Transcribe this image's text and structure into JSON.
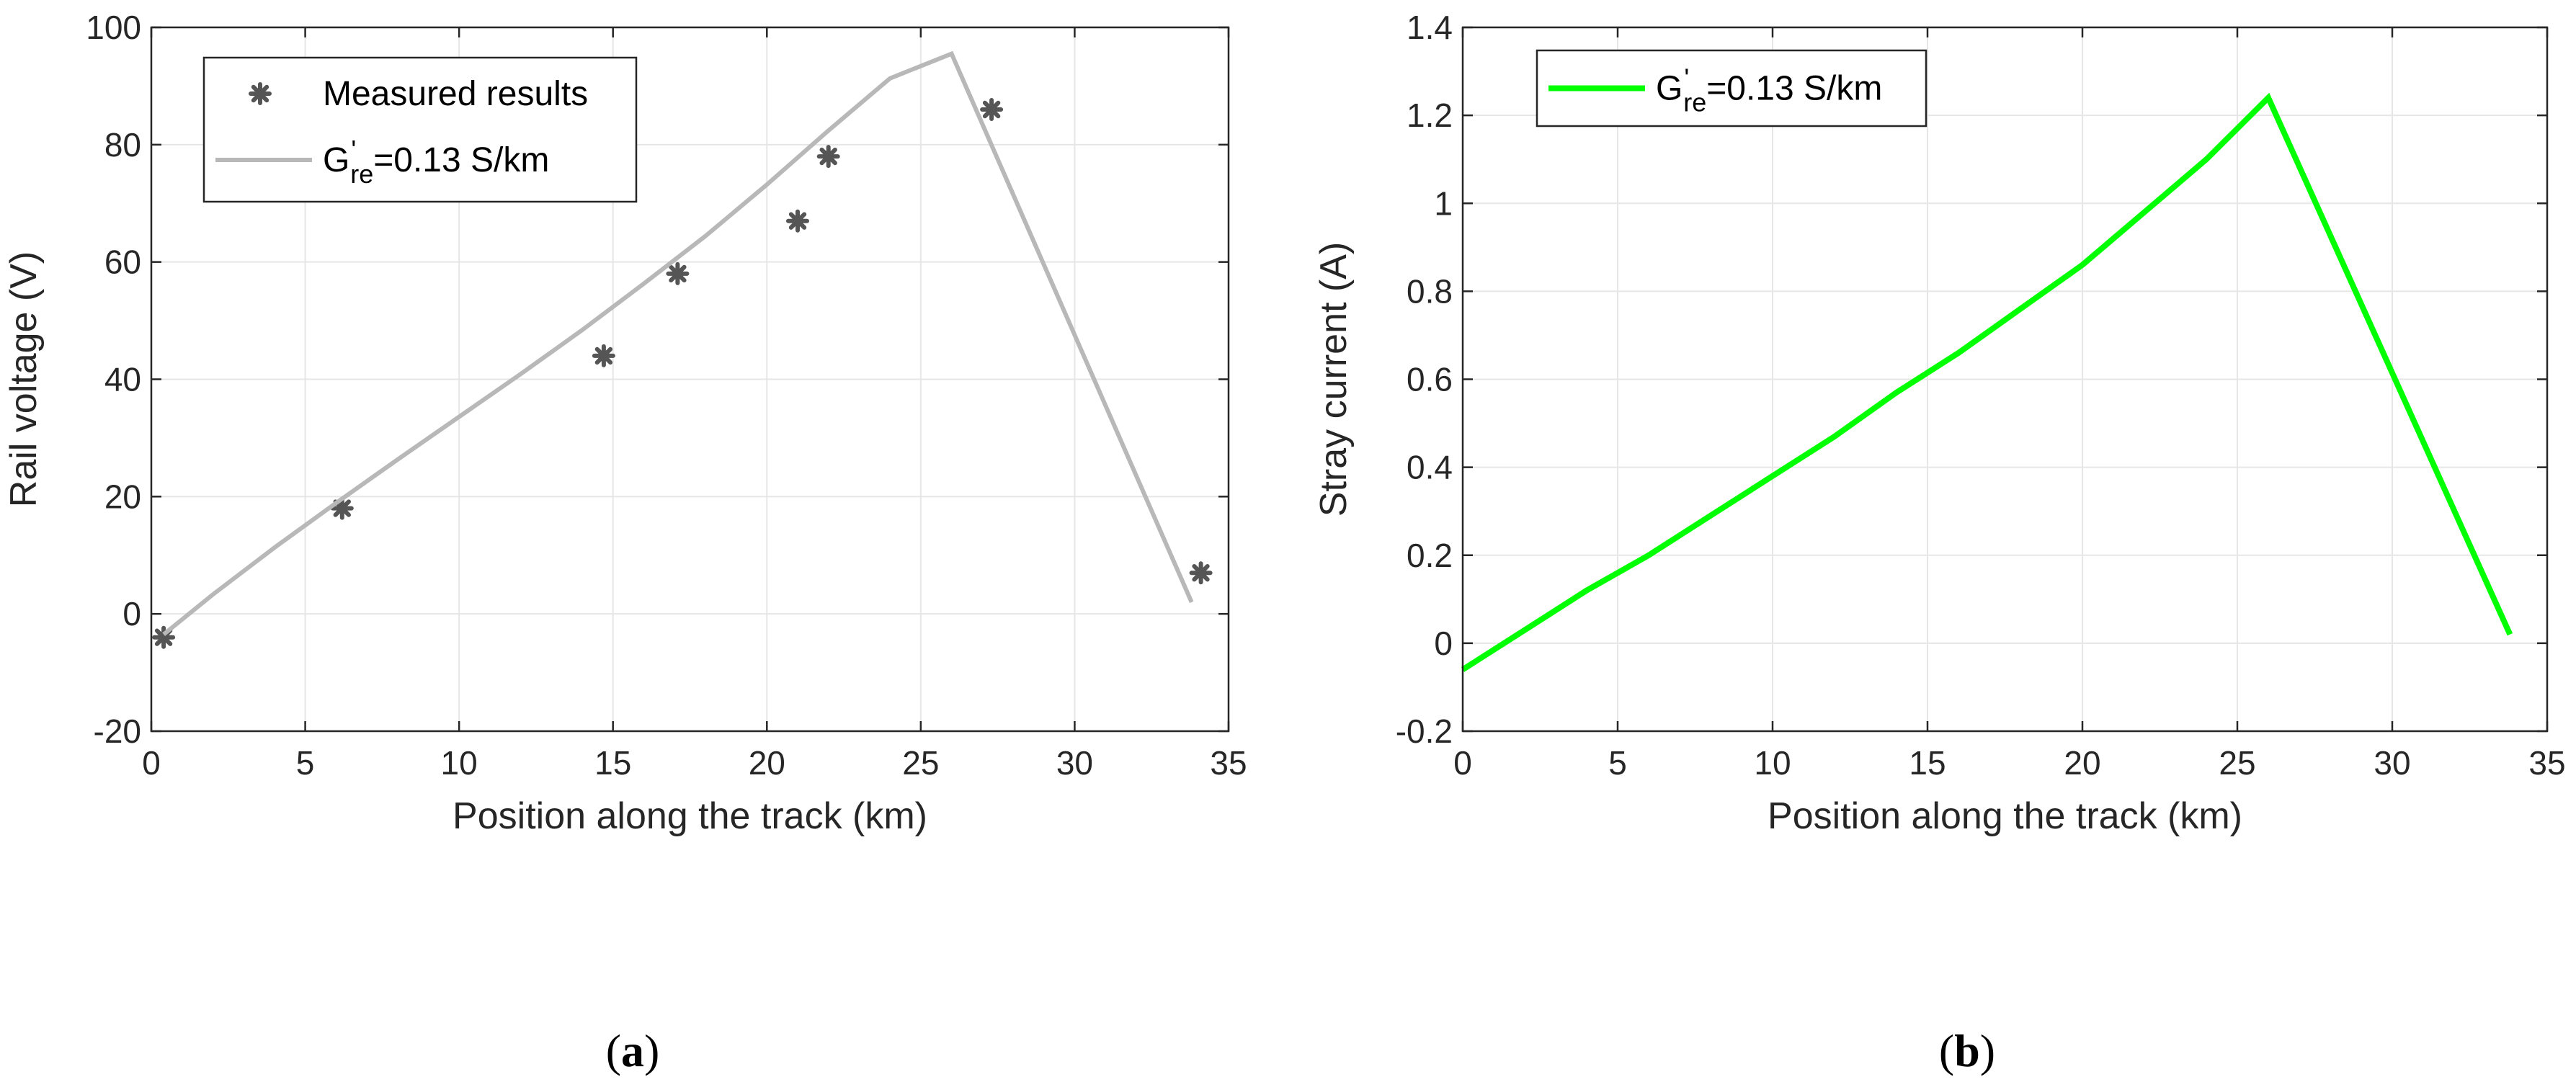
{
  "chart_data": [
    {
      "type": "line",
      "panel": "a",
      "caption": {
        "open": "(",
        "letter": "a",
        "close": ")"
      },
      "xlabel": "Position along the track (km)",
      "ylabel": "Rail voltage (V)",
      "xlim": [
        0,
        35
      ],
      "ylim": [
        -20,
        100
      ],
      "xticks": [
        0,
        5,
        10,
        15,
        20,
        25,
        30,
        35
      ],
      "yticks": [
        -20,
        0,
        20,
        40,
        60,
        80,
        100
      ],
      "grid": true,
      "legend_position": "top-left",
      "series": [
        {
          "name": "Measured results",
          "kind": "scatter",
          "marker": "asterisk",
          "color": "#555555",
          "x": [
            0.4,
            6.2,
            14.7,
            17.1,
            21.0,
            22.0,
            27.3,
            34.1
          ],
          "y": [
            -4,
            18,
            44,
            58,
            67,
            78,
            86,
            7
          ]
        },
        {
          "name": "G're=0.13 S/km",
          "legend_label": {
            "base": "G",
            "sup": "'",
            "sub": "re",
            "rest": "=0.13 S/km"
          },
          "kind": "line",
          "color": "#b8b8b8",
          "x": [
            0.4,
            2,
            4,
            6,
            8,
            10,
            12,
            14,
            16,
            18,
            20,
            22,
            24,
            26,
            33.8
          ],
          "y": [
            -3.5,
            3.3,
            11.3,
            18.9,
            26.3,
            33.6,
            40.9,
            48.4,
            56.3,
            64.4,
            73.2,
            82.4,
            91.3,
            95.5,
            2
          ]
        }
      ]
    },
    {
      "type": "line",
      "panel": "b",
      "caption": {
        "open": "(",
        "letter": "b",
        "close": ")"
      },
      "xlabel": "Position along the track (km)",
      "ylabel": "Stray current (A)",
      "xlim": [
        0,
        35
      ],
      "ylim": [
        -0.2,
        1.4
      ],
      "xticks": [
        0,
        5,
        10,
        15,
        20,
        25,
        30,
        35
      ],
      "yticks": [
        -0.2,
        0,
        0.2,
        0.4,
        0.6,
        0.8,
        1,
        1.2,
        1.4
      ],
      "grid": true,
      "legend_position": "top-left",
      "series": [
        {
          "name": "G're=0.13 S/km",
          "legend_label": {
            "base": "G",
            "sup": "'",
            "sub": "re",
            "rest": "=0.13 S/km"
          },
          "kind": "line",
          "color": "#00ff00",
          "x": [
            0,
            2,
            4,
            6,
            8,
            10,
            12,
            14,
            16,
            18,
            20,
            22,
            24,
            26,
            33.8
          ],
          "y": [
            -0.06,
            0.03,
            0.12,
            0.2,
            0.29,
            0.38,
            0.47,
            0.57,
            0.66,
            0.76,
            0.86,
            0.98,
            1.1,
            1.24,
            0.02
          ]
        }
      ]
    }
  ]
}
